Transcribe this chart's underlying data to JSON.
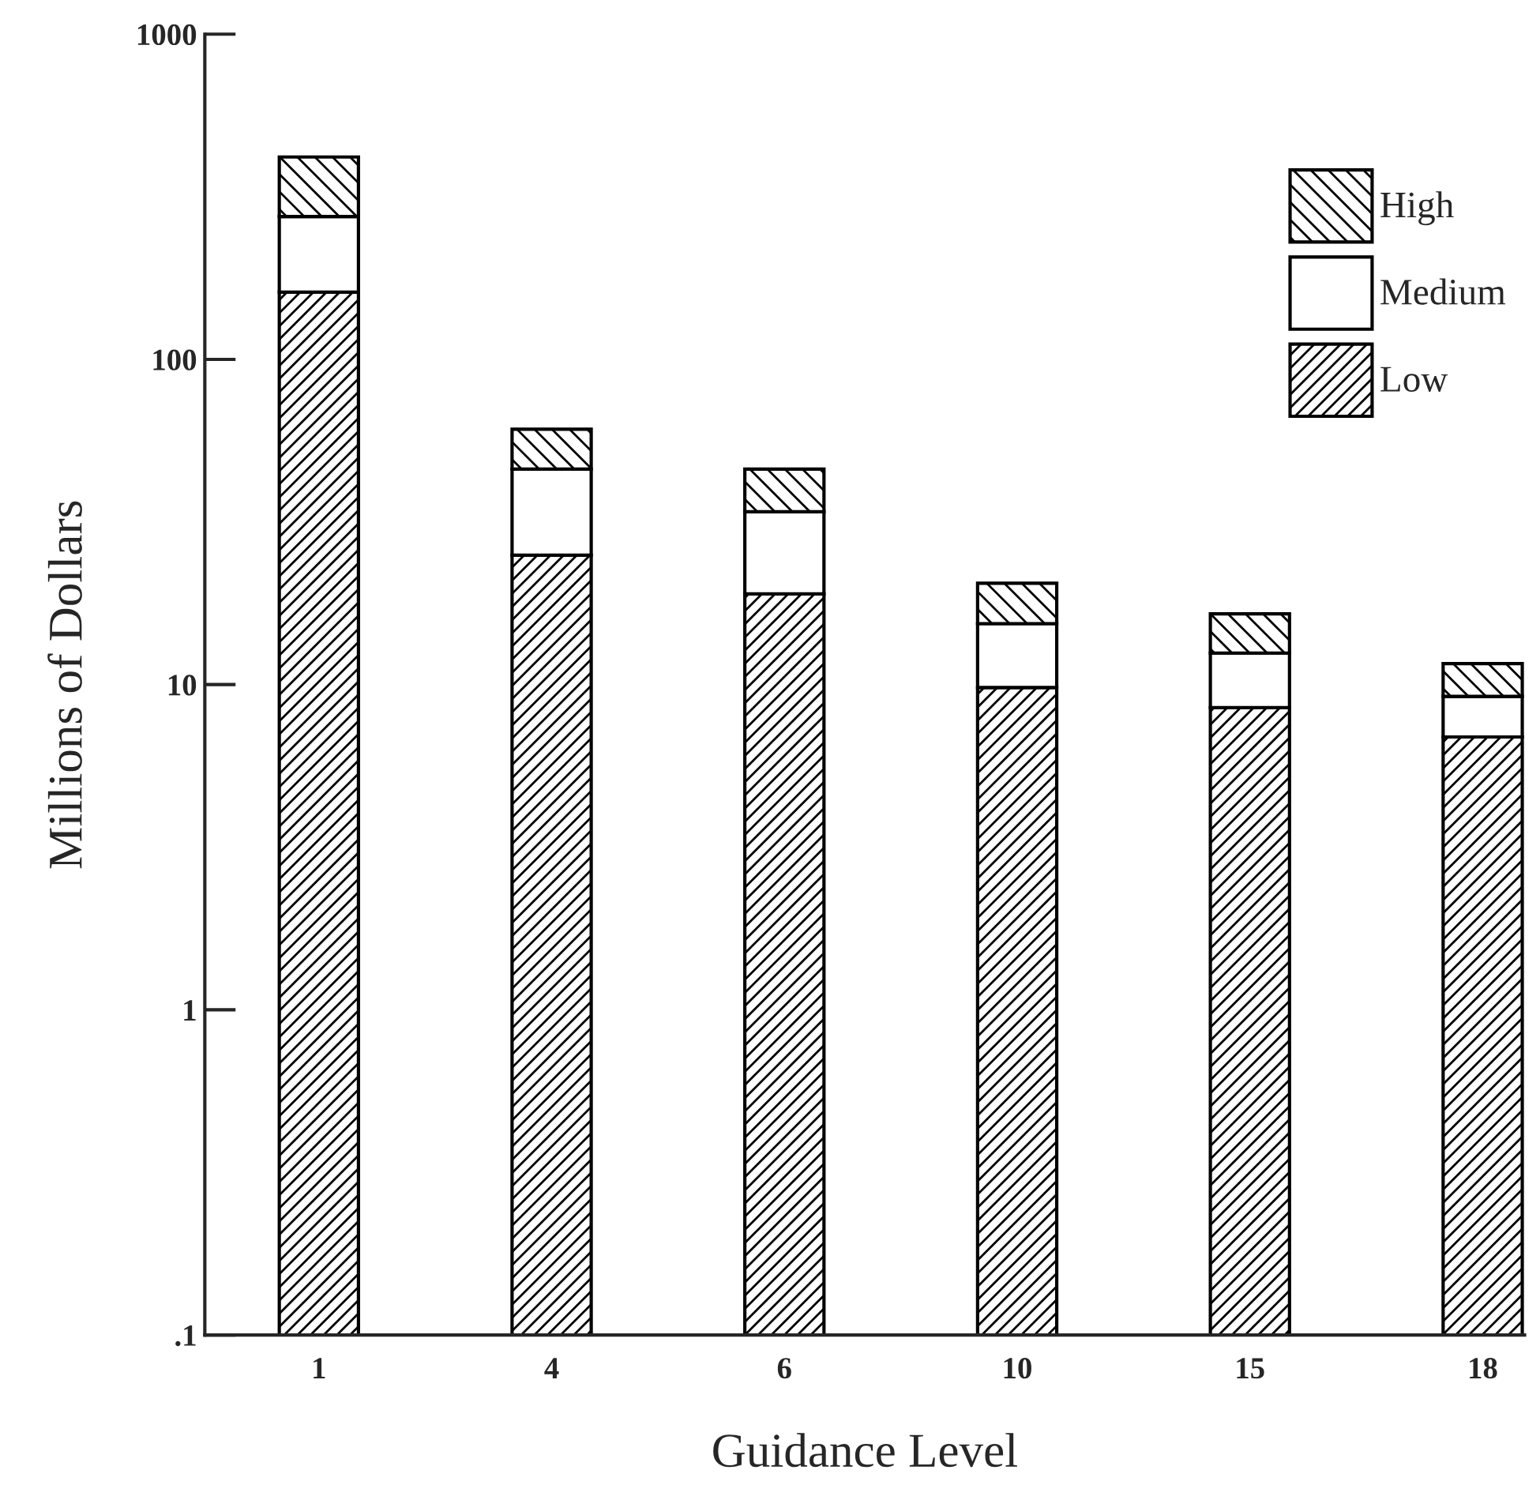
{
  "chart_data": {
    "type": "bar",
    "stacked": true,
    "log": true,
    "xlabel": "Guidance Level",
    "ylabel": "Millions of Dollars",
    "categories": [
      "1",
      "4",
      "6",
      "10",
      "15",
      "18"
    ],
    "series": [
      {
        "name": "Low",
        "color": "#000000",
        "values": [
          161,
          25,
          19,
          9.8,
          8.5,
          6.9
        ]
      },
      {
        "name": "Medium",
        "color": "#ffffff",
        "values": [
          114,
          21,
          15,
          5.6,
          4.0,
          2.3
        ]
      },
      {
        "name": "High",
        "color": "#000000",
        "values": [
          144,
          15,
          12,
          5.1,
          4.0,
          2.4
        ]
      }
    ],
    "ylim": [
      0.1,
      1000
    ],
    "yticks": [
      {
        "value": 0.1,
        "label": ".1"
      },
      1,
      10,
      100,
      1000
    ],
    "grid": false,
    "legend": "top right"
  }
}
